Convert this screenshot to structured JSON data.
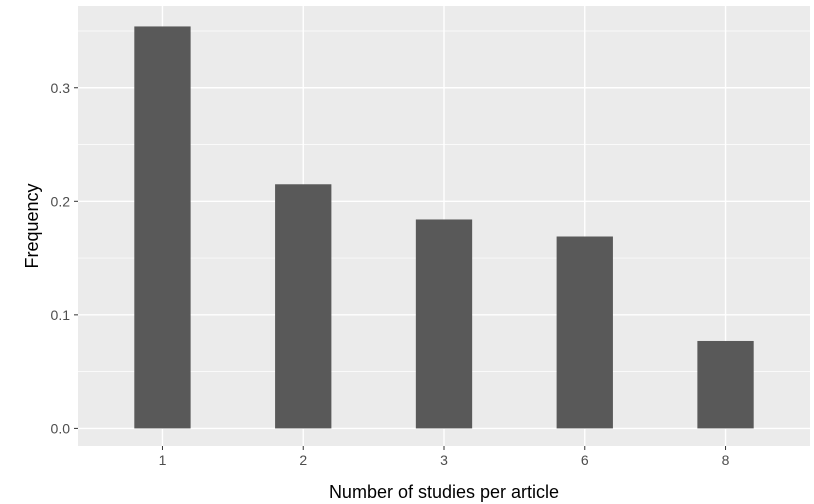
{
  "chart_data": {
    "type": "bar",
    "title": "",
    "xlabel": "Number of studies per article",
    "ylabel": "Frequency",
    "categories": [
      "1",
      "2",
      "3",
      "6",
      "8"
    ],
    "values": [
      0.354,
      0.215,
      0.184,
      0.169,
      0.077
    ],
    "ylim": [
      -0.0155,
      0.372
    ],
    "y_ticks": [
      0.0,
      0.1,
      0.2,
      0.3
    ],
    "y_tick_labels": [
      "0.0",
      "0.1",
      "0.2",
      "0.3"
    ],
    "grid": true,
    "legend": "none",
    "colors": {
      "panel_background": "#ebebeb",
      "grid_major": "#ffffff",
      "bar_fill": "#595959",
      "tick_color": "#333333",
      "tick_label_color": "#4d4d4d"
    }
  }
}
